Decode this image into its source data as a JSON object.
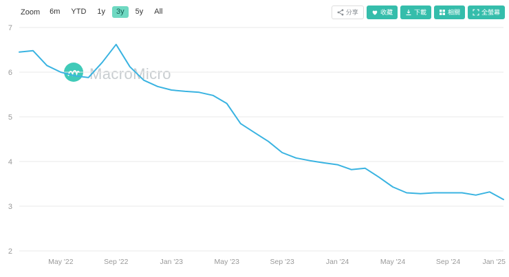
{
  "brand": {
    "watermark_text": "MacroMicro",
    "teal": "#2cc5b1"
  },
  "toolbar": {
    "zoom_label": "Zoom",
    "ranges": [
      {
        "label": "6m",
        "active": false
      },
      {
        "label": "YTD",
        "active": false
      },
      {
        "label": "1y",
        "active": false
      },
      {
        "label": "3y",
        "active": true
      },
      {
        "label": "5y",
        "active": false
      },
      {
        "label": "All",
        "active": false
      }
    ],
    "actions": [
      {
        "label": "分享",
        "icon": "share-icon",
        "style": "light"
      },
      {
        "label": "收藏",
        "icon": "heart-icon",
        "style": "teal"
      },
      {
        "label": "下載",
        "icon": "download-icon",
        "style": "teal"
      },
      {
        "label": "相關",
        "icon": "grid-icon",
        "style": "teal"
      },
      {
        "label": "全螢幕",
        "icon": "expand-icon",
        "style": "teal"
      }
    ]
  },
  "chart_data": {
    "type": "line",
    "title": "",
    "x": [
      "2022-02",
      "2022-03",
      "2022-04",
      "2022-05",
      "2022-06",
      "2022-07",
      "2022-08",
      "2022-09",
      "2022-10",
      "2022-11",
      "2022-12",
      "2023-01",
      "2023-02",
      "2023-03",
      "2023-04",
      "2023-05",
      "2023-06",
      "2023-07",
      "2023-08",
      "2023-09",
      "2023-10",
      "2023-11",
      "2023-12",
      "2024-01",
      "2024-02",
      "2024-03",
      "2024-04",
      "2024-05",
      "2024-06",
      "2024-07",
      "2024-08",
      "2024-09",
      "2024-10",
      "2024-11",
      "2024-12",
      "2025-01"
    ],
    "values": [
      6.45,
      6.48,
      6.15,
      6.0,
      5.92,
      5.88,
      6.22,
      6.62,
      6.12,
      5.82,
      5.68,
      5.6,
      5.57,
      5.55,
      5.48,
      5.3,
      4.85,
      4.65,
      4.45,
      4.2,
      4.08,
      4.02,
      3.97,
      3.93,
      3.82,
      3.85,
      3.65,
      3.43,
      3.3,
      3.28,
      3.3,
      3.3,
      3.3,
      3.25,
      3.32,
      3.15
    ],
    "ylim": [
      2,
      7
    ],
    "yticks": [
      7,
      6,
      5,
      4,
      3,
      2
    ],
    "xticks": [
      "May '22",
      "Sep '22",
      "Jan '23",
      "May '23",
      "Sep '23",
      "Jan '24",
      "May '24",
      "Sep '24",
      "Jan '25"
    ],
    "xtick_indices": [
      3,
      7,
      11,
      15,
      19,
      23,
      27,
      31,
      35
    ],
    "line_color": "#39b3e1",
    "grid": true,
    "legend": "none"
  }
}
